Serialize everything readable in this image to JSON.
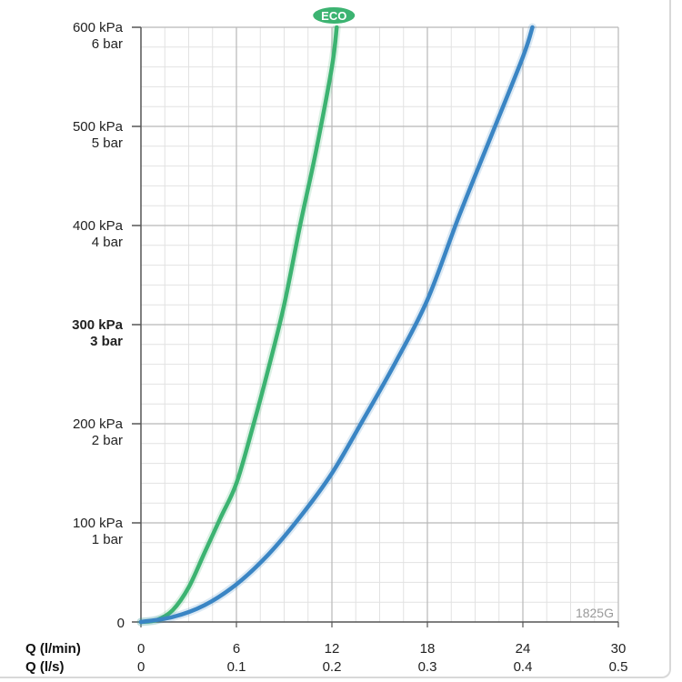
{
  "chart_data": {
    "type": "line",
    "model_label": "1825G",
    "x_axes": [
      {
        "name": "Q (l/min)",
        "ticks": [
          "0",
          "6",
          "12",
          "18",
          "24",
          "30"
        ],
        "range": [
          0,
          30
        ]
      },
      {
        "name": "Q (l/s)",
        "ticks": [
          "0",
          "0.1",
          "0.2",
          "0.3",
          "0.4",
          "0.5"
        ],
        "range": [
          0,
          0.5
        ]
      }
    ],
    "y_axis": {
      "range": [
        0,
        600
      ],
      "ticks": [
        {
          "value": 0,
          "line1": "0",
          "line2": "",
          "bold": false
        },
        {
          "value": 100,
          "line1": "100 kPa",
          "line2": "1 bar",
          "bold": false
        },
        {
          "value": 200,
          "line1": "200 kPa",
          "line2": "2 bar",
          "bold": false
        },
        {
          "value": 300,
          "line1": "300 kPa",
          "line2": "3 bar",
          "bold": true
        },
        {
          "value": 400,
          "line1": "400 kPa",
          "line2": "4 bar",
          "bold": false
        },
        {
          "value": 500,
          "line1": "500 kPa",
          "line2": "5 bar",
          "bold": false
        },
        {
          "value": 600,
          "line1": "600 kPa",
          "line2": "6 bar",
          "bold": false
        }
      ]
    },
    "grid": true,
    "series": [
      {
        "name": "ECO",
        "color": "#3cb371",
        "x": [
          0,
          1,
          2,
          3,
          4,
          5,
          6,
          7,
          8,
          9,
          10,
          11,
          12,
          12.3
        ],
        "y": [
          0,
          2,
          12,
          35,
          70,
          105,
          140,
          195,
          255,
          320,
          400,
          475,
          560,
          600
        ]
      },
      {
        "name": "",
        "color": "#3a85c4",
        "x": [
          0,
          2,
          4,
          6,
          8,
          10,
          12,
          14,
          16,
          18,
          20,
          22,
          24,
          24.6
        ],
        "y": [
          0,
          5,
          17,
          38,
          68,
          106,
          150,
          205,
          262,
          325,
          410,
          490,
          570,
          600
        ]
      }
    ]
  }
}
